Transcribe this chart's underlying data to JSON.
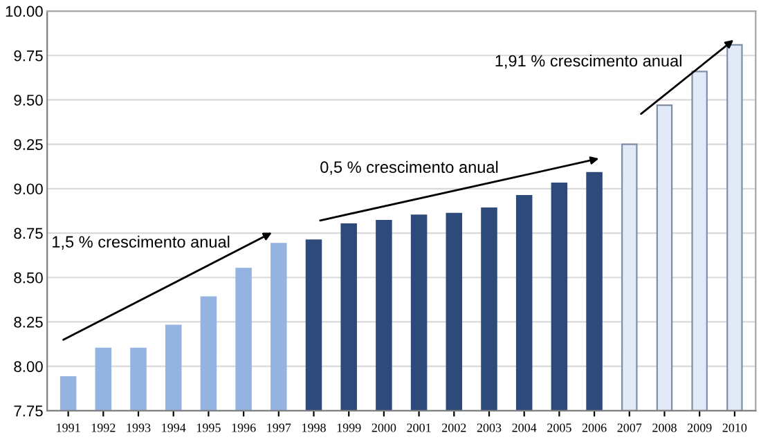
{
  "chart_data": {
    "type": "bar",
    "categories": [
      "1991",
      "1992",
      "1993",
      "1994",
      "1995",
      "1996",
      "1997",
      "1998",
      "1999",
      "2000",
      "2001",
      "2002",
      "2003",
      "2004",
      "2005",
      "2006",
      "2007",
      "2008",
      "2009",
      "2010"
    ],
    "values": [
      7.94,
      8.1,
      8.1,
      8.23,
      8.39,
      8.55,
      8.69,
      8.71,
      8.8,
      8.82,
      8.85,
      8.86,
      8.89,
      8.96,
      9.03,
      9.09,
      9.25,
      9.47,
      9.66,
      9.81
    ],
    "colors": [
      "#95b3e1",
      "#95b3e1",
      "#95b3e1",
      "#95b3e1",
      "#95b3e1",
      "#95b3e1",
      "#95b3e1",
      "#2e4a7a",
      "#2e4a7a",
      "#2e4a7a",
      "#2e4a7a",
      "#2e4a7a",
      "#2e4a7a",
      "#2e4a7a",
      "#2e4a7a",
      "#2e4a7a",
      "#e3eaf7",
      "#e3eaf7",
      "#e3eaf7",
      "#e3eaf7"
    ],
    "ylim": [
      7.75,
      10.0
    ],
    "yticks": [
      7.75,
      {
        "value": 8.0,
        "label": "8.00"
      },
      8.25,
      {
        "value": 8.5,
        "label": "8.50"
      },
      8.75,
      {
        "value": 9.0,
        "label": "9.00"
      },
      9.25,
      {
        "value": 9.5,
        "label": "9.50"
      },
      9.75,
      {
        "value": 10.0,
        "label": "10.00"
      }
    ],
    "grid": "y",
    "annotations": [
      "1,5 % crescimento anual",
      "0,5 % crescimento anual",
      "1,91 % crescimento anual"
    ]
  }
}
